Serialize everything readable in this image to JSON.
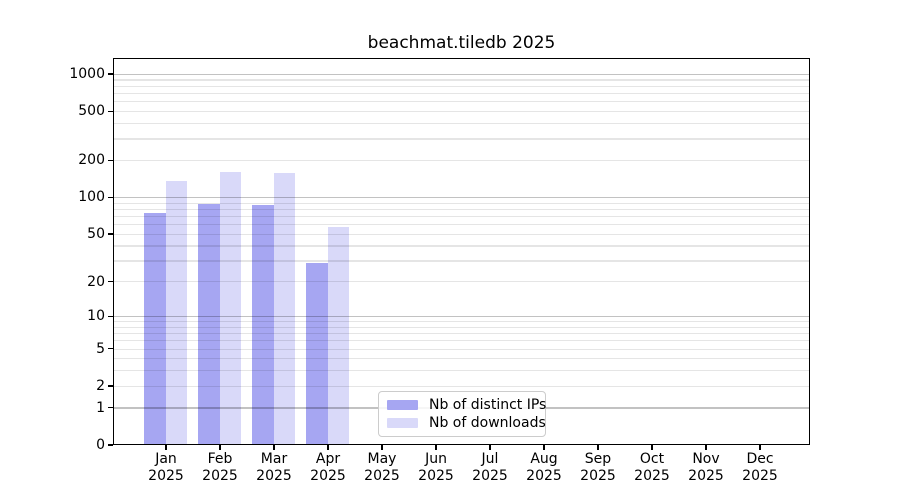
{
  "title": "beachmat.tiledb 2025",
  "legend": {
    "items": [
      {
        "label": "Nb of distinct IPs",
        "color": "#a6a6f2"
      },
      {
        "label": "Nb of downloads",
        "color": "#d9d9f9"
      }
    ]
  },
  "chart_data": {
    "type": "bar",
    "title": "beachmat.tiledb 2025",
    "x_year": "2025",
    "categories": [
      "Jan",
      "Feb",
      "Mar",
      "Apr",
      "May",
      "Jun",
      "Jul",
      "Aug",
      "Sep",
      "Oct",
      "Nov",
      "Dec"
    ],
    "series": [
      {
        "name": "Nb of distinct IPs",
        "color": "#a6a6f2",
        "values": [
          75,
          88,
          87,
          29,
          null,
          null,
          null,
          null,
          null,
          null,
          null,
          null
        ]
      },
      {
        "name": "Nb of downloads",
        "color": "#d9d9f9",
        "values": [
          137,
          161,
          160,
          57,
          null,
          null,
          null,
          null,
          null,
          null,
          null,
          null
        ]
      }
    ],
    "yscale": "log10(v+1)",
    "yticks": [
      0,
      1,
      2,
      5,
      10,
      20,
      50,
      100,
      200,
      500,
      1000
    ],
    "ylim": [
      0,
      1350
    ],
    "grid": "horizontal, major at powers of 10, minor at 2-9 per decade",
    "legend_position": "bottom-center"
  }
}
